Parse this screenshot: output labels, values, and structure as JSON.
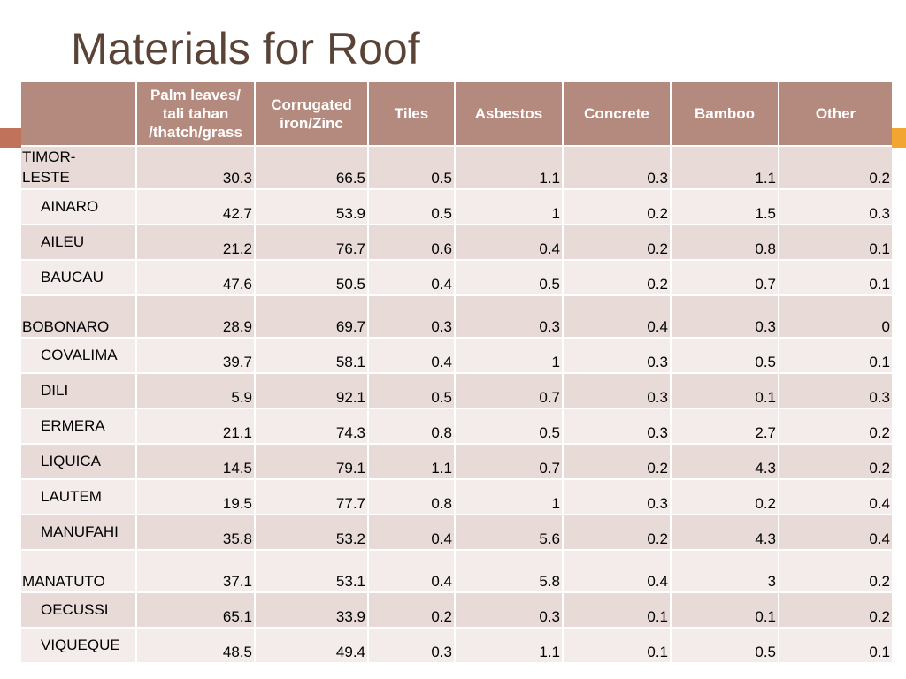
{
  "slide": {
    "title": "Materials for Roof"
  },
  "table": {
    "headers": [
      "",
      "Palm leaves/ tali tahan /thatch/grass",
      "Corrugated iron/Zinc",
      "Tiles",
      "Asbestos",
      "Concrete",
      "Bamboo",
      "Other"
    ],
    "rows": [
      {
        "label": "TIMOR-\nLESTE",
        "values": [
          "30.3",
          "66.5",
          "0.5",
          "1.1",
          "0.3",
          "1.1",
          "0.2"
        ]
      },
      {
        "label": "AINARO",
        "values": [
          "42.7",
          "53.9",
          "0.5",
          "1",
          "0.2",
          "1.5",
          "0.3"
        ]
      },
      {
        "label": "AILEU",
        "values": [
          "21.2",
          "76.7",
          "0.6",
          "0.4",
          "0.2",
          "0.8",
          "0.1"
        ]
      },
      {
        "label": "BAUCAU",
        "values": [
          "47.6",
          "50.5",
          "0.4",
          "0.5",
          "0.2",
          "0.7",
          "0.1"
        ]
      },
      {
        "label": "BOBONARO",
        "values": [
          "28.9",
          "69.7",
          "0.3",
          "0.3",
          "0.4",
          "0.3",
          "0"
        ]
      },
      {
        "label": "COVALIMA",
        "values": [
          "39.7",
          "58.1",
          "0.4",
          "1",
          "0.3",
          "0.5",
          "0.1"
        ]
      },
      {
        "label": "DILI",
        "values": [
          "5.9",
          "92.1",
          "0.5",
          "0.7",
          "0.3",
          "0.1",
          "0.3"
        ]
      },
      {
        "label": "ERMERA",
        "values": [
          "21.1",
          "74.3",
          "0.8",
          "0.5",
          "0.3",
          "2.7",
          "0.2"
        ]
      },
      {
        "label": "LIQUICA",
        "values": [
          "14.5",
          "79.1",
          "1.1",
          "0.7",
          "0.2",
          "4.3",
          "0.2"
        ]
      },
      {
        "label": "LAUTEM",
        "values": [
          "19.5",
          "77.7",
          "0.8",
          "1",
          "0.3",
          "0.2",
          "0.4"
        ]
      },
      {
        "label": "MANUFAHI",
        "values": [
          "35.8",
          "53.2",
          "0.4",
          "5.6",
          "0.2",
          "4.3",
          "0.4"
        ]
      },
      {
        "label": "MANATUTO",
        "values": [
          "37.1",
          "53.1",
          "0.4",
          "5.8",
          "0.4",
          "3",
          "0.2"
        ]
      },
      {
        "label": "OECUSSI",
        "values": [
          "65.1",
          "33.9",
          "0.2",
          "0.3",
          "0.1",
          "0.1",
          "0.2"
        ]
      },
      {
        "label": "VIQUEQUE",
        "values": [
          "48.5",
          "49.4",
          "0.3",
          "1.1",
          "0.1",
          "0.5",
          "0.1"
        ]
      }
    ]
  },
  "colors": {
    "title": "#5a4336",
    "header_bg": "#b48a7e",
    "row_odd": "#e7dad7",
    "row_even": "#f3eceb",
    "accent_left": "#c0735a",
    "accent_right": "#f3a532"
  }
}
